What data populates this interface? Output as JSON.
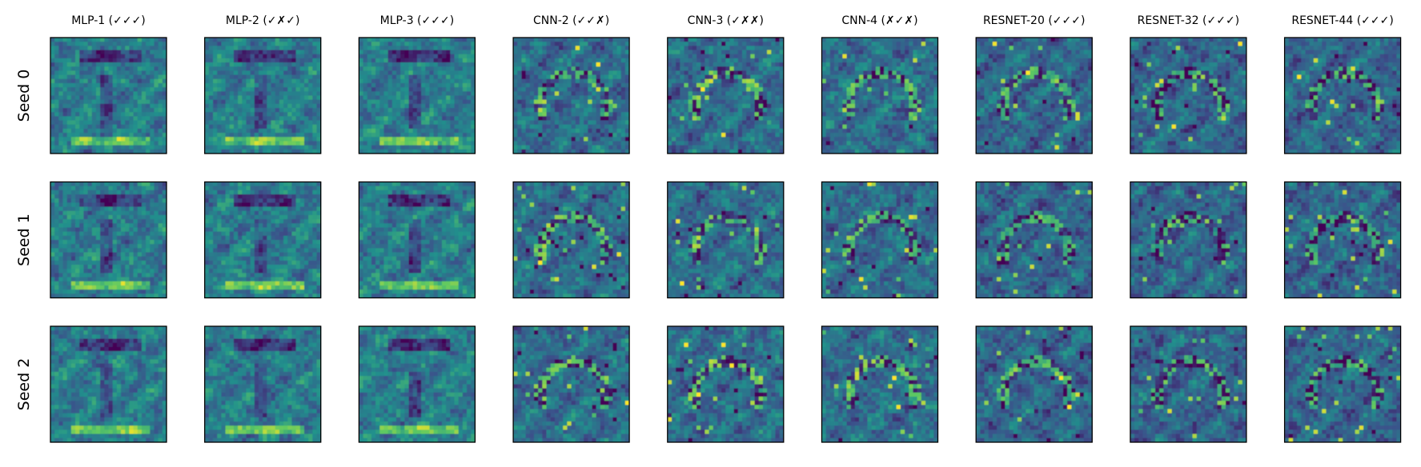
{
  "chart_data": {
    "type": "heatmap",
    "colormap": "viridis",
    "rows": [
      "Seed 0",
      "Seed 1",
      "Seed 2"
    ],
    "columns": [
      "MLP-1 (✓✓✓)",
      "MLP-2 (✓✗✓)",
      "MLP-3 (✓✓✓)",
      "CNN-2 (✓✓✗)",
      "CNN-3 (✓✗✗)",
      "CNN-4 (✗✓✗)",
      "RESNET-20 (✓✓✓)",
      "RESNET-32 (✓✓✓)",
      "RESNET-44 (✓✓✓)"
    ],
    "tile_description": "Each tile is a small heatmap image of a learned pattern; pixel values are not labeled.",
    "axes_ticks": false
  },
  "colors": {
    "viridis_stops": [
      "#440154",
      "#3b528b",
      "#21918c",
      "#5ec962",
      "#fde725"
    ],
    "frame": "#000000"
  }
}
